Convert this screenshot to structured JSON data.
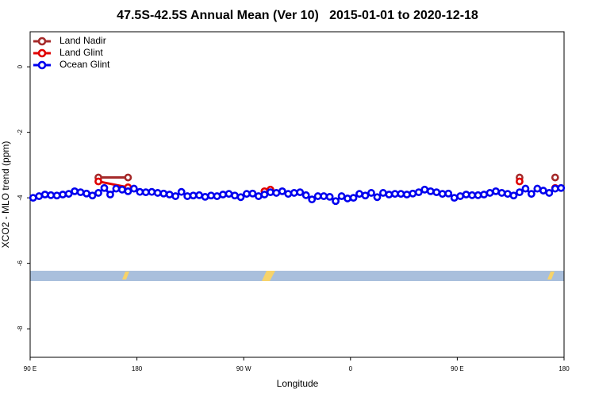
{
  "chart_data": {
    "type": "line",
    "title": "47.5S-42.5S Annual Mean (Ver 10)   2015-01-01 to 2020-12-18",
    "xlabel": "Longitude",
    "ylabel": "XCO2 - MLO trend (ppm)",
    "xlim": [
      90,
      540
    ],
    "ylim": [
      -8.87,
      1.07
    ],
    "xticks": [
      {
        "value": 90,
        "label": "90 E"
      },
      180,
      {
        "value": 270,
        "label": "90 W"
      },
      {
        "value": 360,
        "label": "0"
      },
      {
        "value": 450,
        "label": "90 E"
      },
      {
        "value": 540,
        "label": "180"
      }
    ],
    "yticks": [
      0,
      -2,
      -4,
      -6,
      -8
    ],
    "legend": "top-left",
    "series": [
      {
        "name": "Land Nadir",
        "color": "#a52a2a",
        "x": [
          147.5,
          172.5,
          400,
          502.5,
          520,
          532.5
        ],
        "values": [
          -3.38,
          -3.38,
          null,
          -3.38,
          null,
          -3.38
        ]
      },
      {
        "name": "Land Glint",
        "color": "#e00000",
        "x": [
          147.5,
          172.5,
          230,
          287.5,
          292.5,
          400,
          502.5,
          520,
          532.5
        ],
        "values": [
          -3.5,
          -3.68,
          null,
          -3.8,
          -3.75,
          null,
          -3.5,
          null,
          -3.7
        ]
      },
      {
        "name": "Ocean Glint",
        "color": "#0000ee",
        "x": [
          92.5,
          97.5,
          102.5,
          107.5,
          112.5,
          117.5,
          122.5,
          127.5,
          132.5,
          137.5,
          142.5,
          147.5,
          152.5,
          157.5,
          162.5,
          167.5,
          172.5,
          177.5,
          182.5,
          187.5,
          192.5,
          197.5,
          202.5,
          207.5,
          212.5,
          217.5,
          222.5,
          227.5,
          232.5,
          237.5,
          242.5,
          247.5,
          252.5,
          257.5,
          262.5,
          267.5,
          272.5,
          277.5,
          282.5,
          287.5,
          292.5,
          297.5,
          302.5,
          307.5,
          312.5,
          317.5,
          322.5,
          327.5,
          332.5,
          337.5,
          342.5,
          347.5,
          352.5,
          357.5,
          362.5,
          367.5,
          372.5,
          377.5,
          382.5,
          387.5,
          392.5,
          397.5,
          402.5,
          407.5,
          412.5,
          417.5,
          422.5,
          427.5,
          432.5,
          437.5,
          442.5,
          447.5,
          452.5,
          457.5,
          462.5,
          467.5,
          472.5,
          477.5,
          482.5,
          487.5,
          492.5,
          497.5,
          502.5,
          507.5,
          512.5,
          517.5,
          522.5,
          527.5,
          532.5,
          537.5
        ],
        "values": [
          -4.0,
          -3.95,
          -3.9,
          -3.92,
          -3.93,
          -3.9,
          -3.88,
          -3.8,
          -3.83,
          -3.87,
          -3.93,
          -3.85,
          -3.7,
          -3.9,
          -3.72,
          -3.75,
          -3.8,
          -3.72,
          -3.82,
          -3.83,
          -3.82,
          -3.85,
          -3.87,
          -3.9,
          -3.95,
          -3.82,
          -3.95,
          -3.93,
          -3.92,
          -3.97,
          -3.93,
          -3.95,
          -3.9,
          -3.88,
          -3.93,
          -3.98,
          -3.88,
          -3.87,
          -3.95,
          -3.9,
          -3.83,
          -3.85,
          -3.8,
          -3.88,
          -3.85,
          -3.83,
          -3.92,
          -4.05,
          -3.95,
          -3.95,
          -3.97,
          -4.1,
          -3.95,
          -4.02,
          -4.0,
          -3.88,
          -3.93,
          -3.85,
          -3.98,
          -3.85,
          -3.9,
          -3.88,
          -3.88,
          -3.9,
          -3.87,
          -3.83,
          -3.75,
          -3.8,
          -3.83,
          -3.88,
          -3.87,
          -4.0,
          -3.95,
          -3.9,
          -3.92,
          -3.92,
          -3.9,
          -3.85,
          -3.8,
          -3.85,
          -3.88,
          -3.93,
          -3.83,
          -3.72,
          -3.88,
          -3.72,
          -3.78,
          -3.85,
          -3.72,
          -3.7
        ]
      }
    ]
  }
}
